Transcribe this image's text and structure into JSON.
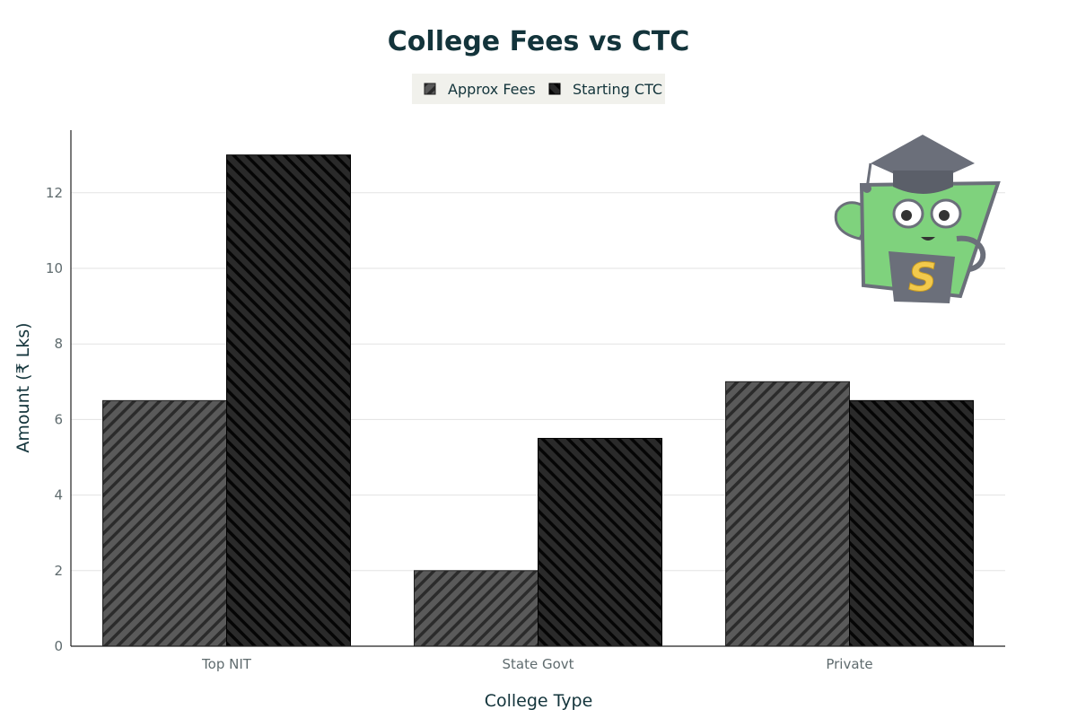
{
  "chart_data": {
    "type": "bar",
    "title": "College Fees vs CTC",
    "xlabel": "College Type",
    "ylabel": "Amount (₹ Lks)",
    "categories": [
      "Top NIT",
      "State Govt",
      "Private"
    ],
    "series": [
      {
        "name": "Approx Fees",
        "values": [
          6.5,
          2.0,
          7.0
        ],
        "color": "#555555",
        "pattern": "diagonal-forward"
      },
      {
        "name": "Starting CTC",
        "values": [
          13.0,
          5.5,
          6.5
        ],
        "color": "#222222",
        "pattern": "diagonal-backward"
      }
    ],
    "ylim": [
      0,
      13.7
    ],
    "yticks": [
      "0",
      "2",
      "4",
      "6",
      "8",
      "10",
      "12"
    ],
    "grid": true,
    "legend_position": "top-center",
    "mascot": {
      "icon": "graduation-mascot-icon",
      "letter": "S",
      "body_color": "#7fd27d",
      "cap_color": "#6b6f7a",
      "letter_color": "#f2c94c"
    }
  }
}
